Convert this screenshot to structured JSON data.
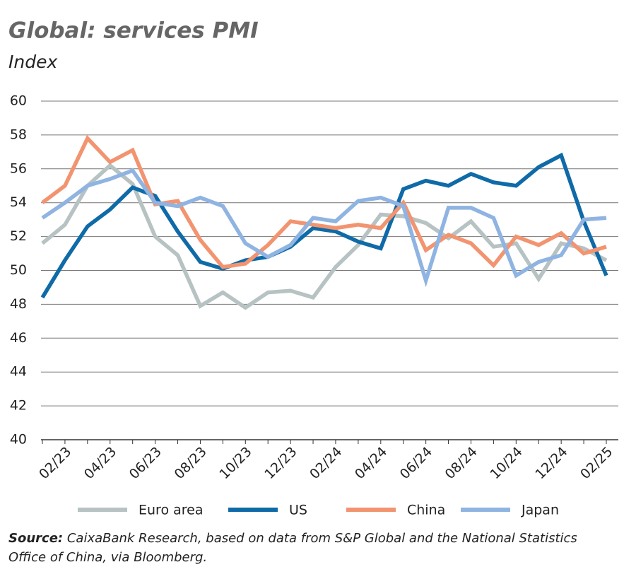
{
  "chart_data": {
    "type": "line",
    "title": "Global: services PMI",
    "subtitle": "Index",
    "categories": [
      null,
      "02/23",
      null,
      "04/23",
      null,
      "06/23",
      null,
      "08/23",
      null,
      "10/23",
      null,
      "12/23",
      null,
      "02/24",
      null,
      "04/24",
      null,
      "06/24",
      null,
      "08/24",
      null,
      "10/24",
      null,
      "12/24",
      null,
      "02/25"
    ],
    "series": [
      {
        "name": "Euro area",
        "color": "#b7c2c2",
        "values": [
          51.6,
          52.7,
          55.0,
          56.2,
          55.1,
          52.0,
          50.9,
          47.9,
          48.7,
          47.8,
          48.7,
          48.8,
          48.4,
          50.2,
          51.5,
          53.3,
          53.2,
          52.8,
          51.9,
          52.9,
          51.4,
          51.6,
          49.5,
          51.6,
          51.3,
          50.6
        ]
      },
      {
        "name": "US",
        "color": "#0f6aa8",
        "values": [
          48.4,
          50.6,
          52.6,
          53.6,
          54.9,
          54.4,
          52.3,
          50.5,
          50.1,
          50.6,
          50.8,
          51.4,
          52.5,
          52.3,
          51.7,
          51.3,
          54.8,
          55.3,
          55.0,
          55.7,
          55.2,
          55.0,
          56.1,
          56.8,
          52.9,
          49.7
        ]
      },
      {
        "name": "China",
        "color": "#f29470",
        "values": [
          54.0,
          55.0,
          57.8,
          56.4,
          57.1,
          53.9,
          54.1,
          51.8,
          50.2,
          50.4,
          51.5,
          52.9,
          52.7,
          52.5,
          52.7,
          52.5,
          54.0,
          51.2,
          52.1,
          51.6,
          50.3,
          52.0,
          51.5,
          52.2,
          51.0,
          51.4
        ]
      },
      {
        "name": "Japan",
        "color": "#8fb4e2",
        "values": [
          53.1,
          54.0,
          55.0,
          55.4,
          55.9,
          54.0,
          53.8,
          54.3,
          53.8,
          51.6,
          50.8,
          51.5,
          53.1,
          52.9,
          54.1,
          54.3,
          53.8,
          49.4,
          53.7,
          53.7,
          53.1,
          49.7,
          50.5,
          50.9,
          53.0,
          53.1
        ]
      }
    ],
    "ylim": [
      40,
      60
    ],
    "yticks": [
      40,
      42,
      44,
      46,
      48,
      50,
      52,
      54,
      56,
      58,
      60
    ],
    "grid": true,
    "source_label": "Source:",
    "source_text": "CaixaBank Research, based on data from S&P Global and the National Statistics Office of China, via Bloomberg."
  }
}
